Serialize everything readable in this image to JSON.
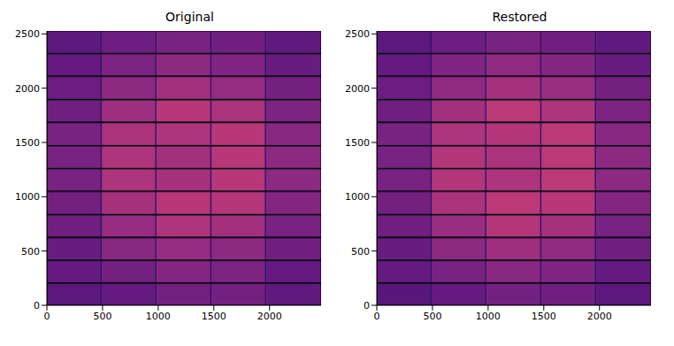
{
  "chart_data": [
    {
      "type": "heatmap",
      "title": "Original",
      "xlim": [
        0,
        2463
      ],
      "ylim": [
        0,
        2527
      ],
      "xticks": [
        0,
        500,
        1000,
        1500,
        2000
      ],
      "yticks": [
        0,
        500,
        1000,
        1500,
        2000,
        2500
      ],
      "x_edges": [
        0,
        485,
        497,
        975,
        987,
        1470,
        1482,
        1960,
        1972,
        2463
      ],
      "y_edges": [
        0,
        200,
        215,
        410,
        425,
        620,
        635,
        830,
        845,
        1045,
        1060,
        1255,
        1270,
        1465,
        1480,
        1680,
        1695,
        1890,
        1905,
        2105,
        2120,
        2315,
        2330,
        2527
      ],
      "cells": [
        [
          0.28,
          0.18,
          0.3,
          0.18,
          0.34,
          0.18,
          0.34,
          0.18,
          0.29
        ],
        [
          0.03,
          0.03,
          0.03,
          0.03,
          0.03,
          0.03,
          0.03,
          0.03,
          0.03
        ],
        [
          0.3,
          0.18,
          0.34,
          0.18,
          0.38,
          0.18,
          0.36,
          0.18,
          0.3
        ],
        [
          0.03,
          0.03,
          0.03,
          0.03,
          0.03,
          0.03,
          0.03,
          0.03,
          0.03
        ],
        [
          0.31,
          0.18,
          0.39,
          0.18,
          0.42,
          0.18,
          0.4,
          0.18,
          0.33
        ],
        [
          0.03,
          0.03,
          0.03,
          0.03,
          0.03,
          0.03,
          0.03,
          0.03,
          0.03
        ],
        [
          0.33,
          0.18,
          0.42,
          0.18,
          0.48,
          0.18,
          0.45,
          0.18,
          0.35
        ],
        [
          0.03,
          0.03,
          0.03,
          0.03,
          0.03,
          0.03,
          0.03,
          0.03,
          0.03
        ],
        [
          0.34,
          0.18,
          0.46,
          0.18,
          0.5,
          0.18,
          0.49,
          0.18,
          0.38
        ],
        [
          0.03,
          0.03,
          0.03,
          0.03,
          0.03,
          0.03,
          0.03,
          0.03,
          0.03
        ],
        [
          0.35,
          0.18,
          0.48,
          0.18,
          0.46,
          0.18,
          0.5,
          0.18,
          0.4
        ],
        [
          0.03,
          0.03,
          0.03,
          0.03,
          0.03,
          0.03,
          0.03,
          0.03,
          0.03
        ],
        [
          0.35,
          0.18,
          0.48,
          0.18,
          0.45,
          0.18,
          0.5,
          0.18,
          0.4
        ],
        [
          0.03,
          0.03,
          0.03,
          0.03,
          0.03,
          0.03,
          0.03,
          0.03,
          0.03
        ],
        [
          0.35,
          0.18,
          0.47,
          0.18,
          0.48,
          0.18,
          0.5,
          0.18,
          0.39
        ],
        [
          0.03,
          0.03,
          0.03,
          0.03,
          0.03,
          0.03,
          0.03,
          0.03,
          0.03
        ],
        [
          0.33,
          0.18,
          0.44,
          0.18,
          0.5,
          0.18,
          0.47,
          0.18,
          0.36
        ],
        [
          0.03,
          0.03,
          0.03,
          0.03,
          0.03,
          0.03,
          0.03,
          0.03,
          0.03
        ],
        [
          0.32,
          0.18,
          0.4,
          0.18,
          0.45,
          0.18,
          0.42,
          0.18,
          0.34
        ],
        [
          0.03,
          0.03,
          0.03,
          0.03,
          0.03,
          0.03,
          0.03,
          0.03,
          0.03
        ],
        [
          0.3,
          0.18,
          0.36,
          0.18,
          0.4,
          0.18,
          0.37,
          0.18,
          0.31
        ],
        [
          0.03,
          0.03,
          0.03,
          0.03,
          0.03,
          0.03,
          0.03,
          0.03,
          0.03
        ],
        [
          0.28,
          0.18,
          0.32,
          0.18,
          0.35,
          0.18,
          0.33,
          0.18,
          0.29
        ]
      ]
    },
    {
      "type": "heatmap",
      "title": "Restored",
      "xlim": [
        0,
        2463
      ],
      "ylim": [
        0,
        2527
      ],
      "xticks": [
        0,
        500,
        1000,
        1500,
        2000
      ],
      "yticks": [
        0,
        500,
        1000,
        1500,
        2000,
        2500
      ],
      "x_edges": [
        0,
        485,
        497,
        975,
        987,
        1470,
        1482,
        1960,
        1972,
        2463
      ],
      "y_edges": [
        0,
        200,
        215,
        410,
        425,
        620,
        635,
        830,
        845,
        1045,
        1060,
        1255,
        1270,
        1465,
        1480,
        1680,
        1695,
        1890,
        1905,
        2105,
        2120,
        2315,
        2330,
        2527
      ],
      "cells": [
        [
          0.27,
          0.18,
          0.3,
          0.18,
          0.34,
          0.18,
          0.33,
          0.18,
          0.28
        ],
        [
          0.03,
          0.03,
          0.03,
          0.03,
          0.03,
          0.03,
          0.03,
          0.03,
          0.03
        ],
        [
          0.3,
          0.18,
          0.35,
          0.18,
          0.39,
          0.18,
          0.37,
          0.18,
          0.3
        ],
        [
          0.03,
          0.03,
          0.03,
          0.03,
          0.03,
          0.03,
          0.03,
          0.03,
          0.03
        ],
        [
          0.31,
          0.18,
          0.4,
          0.18,
          0.44,
          0.18,
          0.41,
          0.18,
          0.33
        ],
        [
          0.03,
          0.03,
          0.03,
          0.03,
          0.03,
          0.03,
          0.03,
          0.03,
          0.03
        ],
        [
          0.33,
          0.18,
          0.43,
          0.18,
          0.49,
          0.18,
          0.46,
          0.18,
          0.35
        ],
        [
          0.03,
          0.03,
          0.03,
          0.03,
          0.03,
          0.03,
          0.03,
          0.03,
          0.03
        ],
        [
          0.34,
          0.18,
          0.47,
          0.18,
          0.51,
          0.18,
          0.5,
          0.18,
          0.38
        ],
        [
          0.03,
          0.03,
          0.03,
          0.03,
          0.03,
          0.03,
          0.03,
          0.03,
          0.03
        ],
        [
          0.35,
          0.18,
          0.49,
          0.18,
          0.48,
          0.18,
          0.51,
          0.18,
          0.4
        ],
        [
          0.03,
          0.03,
          0.03,
          0.03,
          0.03,
          0.03,
          0.03,
          0.03,
          0.03
        ],
        [
          0.35,
          0.18,
          0.49,
          0.18,
          0.47,
          0.18,
          0.51,
          0.18,
          0.4
        ],
        [
          0.03,
          0.03,
          0.03,
          0.03,
          0.03,
          0.03,
          0.03,
          0.03,
          0.03
        ],
        [
          0.35,
          0.18,
          0.48,
          0.18,
          0.49,
          0.18,
          0.51,
          0.18,
          0.39
        ],
        [
          0.03,
          0.03,
          0.03,
          0.03,
          0.03,
          0.03,
          0.03,
          0.03,
          0.03
        ],
        [
          0.33,
          0.18,
          0.45,
          0.18,
          0.51,
          0.18,
          0.48,
          0.18,
          0.36
        ],
        [
          0.03,
          0.03,
          0.03,
          0.03,
          0.03,
          0.03,
          0.03,
          0.03,
          0.03
        ],
        [
          0.32,
          0.18,
          0.41,
          0.18,
          0.46,
          0.18,
          0.43,
          0.18,
          0.34
        ],
        [
          0.03,
          0.03,
          0.03,
          0.03,
          0.03,
          0.03,
          0.03,
          0.03,
          0.03
        ],
        [
          0.3,
          0.18,
          0.37,
          0.18,
          0.41,
          0.18,
          0.38,
          0.18,
          0.31
        ],
        [
          0.03,
          0.03,
          0.03,
          0.03,
          0.03,
          0.03,
          0.03,
          0.03,
          0.03
        ],
        [
          0.28,
          0.18,
          0.32,
          0.18,
          0.35,
          0.18,
          0.33,
          0.18,
          0.29
        ]
      ]
    }
  ]
}
